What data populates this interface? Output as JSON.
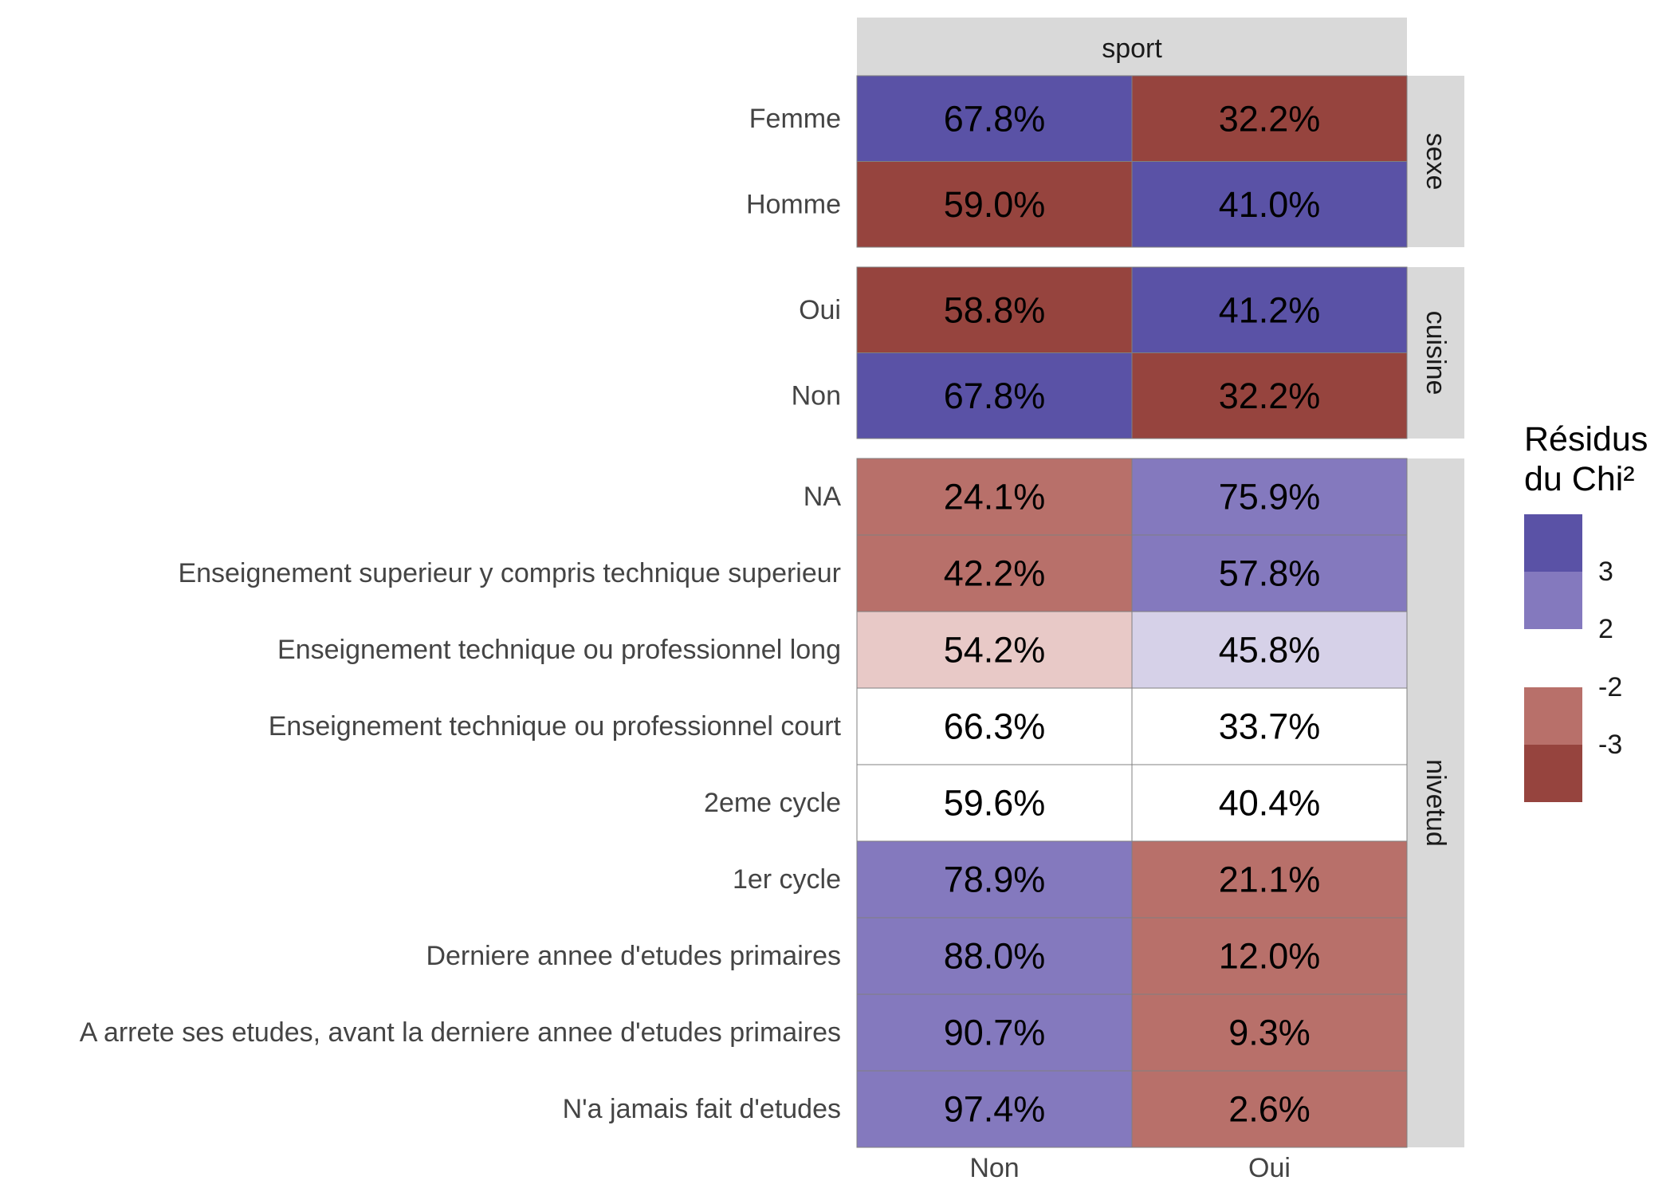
{
  "chart_data": {
    "type": "heatmap",
    "title": "",
    "column_facet_label": "sport",
    "columns": [
      "Non",
      "Oui"
    ],
    "panels": [
      {
        "name": "sexe",
        "rows": [
          {
            "label": "Femme",
            "values": [
              "67.8%",
              "32.2%"
            ],
            "residual_class": [
              "> 3",
              "< -3"
            ]
          },
          {
            "label": "Homme",
            "values": [
              "59.0%",
              "41.0%"
            ],
            "residual_class": [
              "< -3",
              "> 3"
            ]
          }
        ]
      },
      {
        "name": "cuisine",
        "rows": [
          {
            "label": "Oui",
            "values": [
              "58.8%",
              "41.2%"
            ],
            "residual_class": [
              "< -3",
              "> 3"
            ]
          },
          {
            "label": "Non",
            "values": [
              "67.8%",
              "32.2%"
            ],
            "residual_class": [
              "> 3",
              "< -3"
            ]
          }
        ]
      },
      {
        "name": "nivetud",
        "rows": [
          {
            "label": "NA",
            "values": [
              "24.1%",
              "75.9%"
            ],
            "residual_class": [
              "-3 to -2",
              "2 to 3"
            ]
          },
          {
            "label": "Enseignement superieur y compris technique superieur",
            "values": [
              "42.2%",
              "57.8%"
            ],
            "residual_class": [
              "-3 to -2",
              "2 to 3"
            ]
          },
          {
            "label": "Enseignement technique ou professionnel long",
            "values": [
              "54.2%",
              "45.8%"
            ],
            "residual_class": [
              "-2 to 0",
              "0 to 2"
            ]
          },
          {
            "label": "Enseignement technique ou professionnel court",
            "values": [
              "66.3%",
              "33.7%"
            ],
            "residual_class": [
              "neutral",
              "neutral"
            ]
          },
          {
            "label": "2eme cycle",
            "values": [
              "59.6%",
              "40.4%"
            ],
            "residual_class": [
              "neutral",
              "neutral"
            ]
          },
          {
            "label": "1er cycle",
            "values": [
              "78.9%",
              "21.1%"
            ],
            "residual_class": [
              "2 to 3",
              "-3 to -2"
            ]
          },
          {
            "label": "Derniere annee d'etudes primaires",
            "values": [
              "88.0%",
              "12.0%"
            ],
            "residual_class": [
              "2 to 3",
              "-3 to -2"
            ]
          },
          {
            "label": "A arrete ses etudes, avant la derniere annee d'etudes primaires",
            "values": [
              "90.7%",
              "9.3%"
            ],
            "residual_class": [
              "2 to 3",
              "-3 to -2"
            ]
          },
          {
            "label": "N'a jamais fait d'etudes",
            "values": [
              "97.4%",
              "2.6%"
            ],
            "residual_class": [
              "2 to 3",
              "-3 to -2"
            ]
          }
        ]
      }
    ],
    "legend": {
      "title_line1": "Résidus",
      "title_line2": "du Chi²",
      "labels": [
        "3",
        "2",
        "-2",
        "-3"
      ]
    },
    "colors": {
      "> 3": "#5a52a6",
      "2 to 3": "#8479be",
      "0 to 2": "#d6d1e8",
      "neutral": "#ffffff",
      "-2 to 0": "#e8c9c7",
      "-3 to -2": "#b8706a",
      "< -3": "#96443e",
      "strip_bg": "#d9d9d9",
      "cell_border": "#808080"
    }
  }
}
